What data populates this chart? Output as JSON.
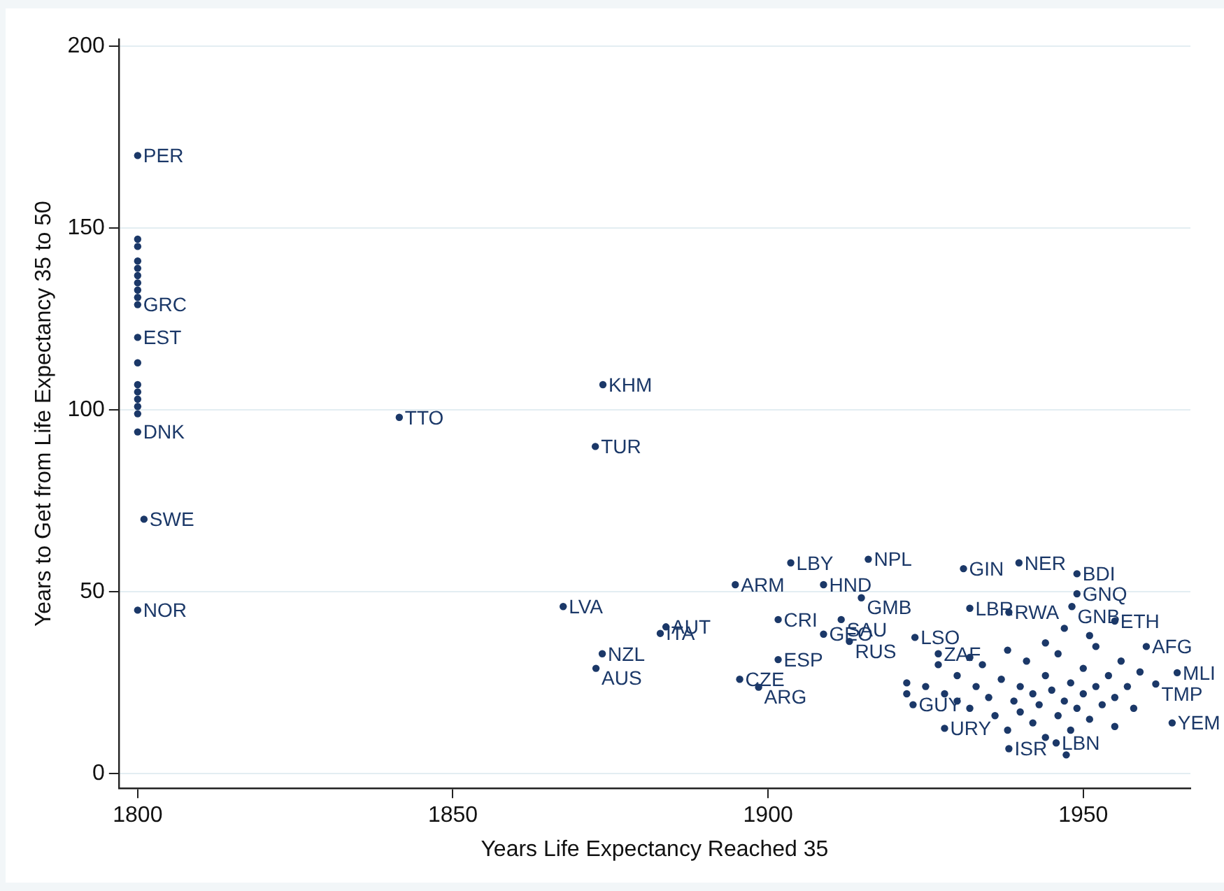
{
  "chart_data": {
    "type": "scatter",
    "xlabel": "Years Life Expectancy Reached 35",
    "ylabel": "Years to Get from Life Expectancy 35 to 50",
    "xlim": [
      1797,
      1967
    ],
    "xticks": [
      1800,
      1850,
      1900,
      1950
    ],
    "ylim": [
      -4,
      202
    ],
    "yticks": [
      0,
      50,
      100,
      150,
      200
    ],
    "grid": "y",
    "legend": false,
    "marker": "circle",
    "series": [
      {
        "color": "#1b3868",
        "x": [
          1800,
          1800,
          1800,
          1800,
          1800,
          1800,
          1800,
          1800,
          1800,
          1800,
          1800,
          1800,
          1800,
          1800,
          1800,
          1800,
          1800,
          1800,
          1800,
          1801,
          1841.5,
          1873.8,
          1872.6,
          1867.5,
          1882.9,
          1883.8,
          1873.7,
          1872.7,
          1894.8,
          1903.6,
          1915.9,
          1908.8,
          1914.8,
          1901.6,
          1911.6,
          1908.8,
          1912.9,
          1923.3,
          1901.6,
          1895.5,
          1898.5,
          1931,
          1939.8,
          1949,
          1949,
          1948.2,
          1932,
          1938.2,
          1955,
          1964.9,
          1961.5,
          1964.1,
          1928,
          1938.2,
          1960,
          1923,
          1927,
          1945.7,
          1947.3,
          1922,
          1922,
          1925,
          1927,
          1928,
          1930,
          1930,
          1932,
          1933,
          1934,
          1935,
          1936,
          1937,
          1938,
          1939,
          1940,
          1940,
          1941,
          1942,
          1942,
          1943,
          1944,
          1944,
          1945,
          1946,
          1946,
          1947,
          1948,
          1948,
          1949,
          1950,
          1950,
          1951,
          1952,
          1952,
          1953,
          1954,
          1955,
          1955,
          1956,
          1957,
          1958,
          1959,
          1944,
          1938,
          1932,
          1951,
          1947
        ],
        "values": [
          170,
          147,
          145,
          141,
          139,
          137,
          135,
          133,
          131,
          129,
          120,
          113,
          107,
          105,
          103,
          101,
          99,
          94,
          45,
          70,
          98,
          107,
          90,
          46,
          38.6,
          40.4,
          33,
          29,
          52,
          58,
          59,
          52,
          48.4,
          42.4,
          42.4,
          38.4,
          36.4,
          37.5,
          31.4,
          26,
          23.8,
          56.4,
          58,
          55,
          49.5,
          46,
          45.5,
          44.4,
          42,
          27.8,
          24.7,
          14,
          12.5,
          6.9,
          35,
          19,
          33,
          8.5,
          5.2,
          25,
          22,
          24,
          30,
          22,
          20,
          27,
          18,
          24,
          30,
          21,
          16,
          26,
          12,
          20,
          24,
          17,
          31,
          14,
          22,
          19,
          27,
          10,
          23,
          16,
          33,
          20,
          25,
          12,
          18,
          29,
          22,
          15,
          24,
          35,
          19,
          27,
          21,
          13,
          31,
          24,
          18,
          28,
          36,
          34,
          32,
          38,
          40
        ],
        "value_labels": [
          "PER",
          null,
          null,
          null,
          null,
          null,
          null,
          null,
          null,
          "GRC",
          "EST",
          null,
          null,
          null,
          null,
          null,
          null,
          "DNK",
          "NOR",
          "SWE",
          "TTO",
          "KHM",
          "TUR",
          "LVA",
          "ITA",
          "AUT",
          "NZL",
          "AUS",
          "ARM",
          "LBY",
          "NPL",
          "HND",
          "GMB",
          "CRI",
          "SAU",
          "GEO",
          "RUS",
          "LSO",
          "ESP",
          "CZE",
          "ARG",
          "GIN",
          "NER",
          "BDI",
          "GNQ",
          "GNB",
          "LBR",
          "RWA",
          "ETH",
          "MLI",
          "TMP",
          "YEM",
          "URY",
          "ISR",
          "AFG",
          "GUY",
          "ZAF",
          "LBN",
          null,
          null,
          null,
          null,
          null,
          null,
          null,
          null,
          null,
          null,
          null,
          null,
          null,
          null,
          null,
          null,
          null,
          null,
          null,
          null,
          null,
          null,
          null,
          null,
          null,
          null,
          null,
          null,
          null,
          null,
          null,
          null,
          null,
          null,
          null,
          null,
          null,
          null,
          null,
          null,
          null,
          null,
          null,
          null,
          null,
          null,
          null,
          null,
          null
        ]
      }
    ]
  }
}
